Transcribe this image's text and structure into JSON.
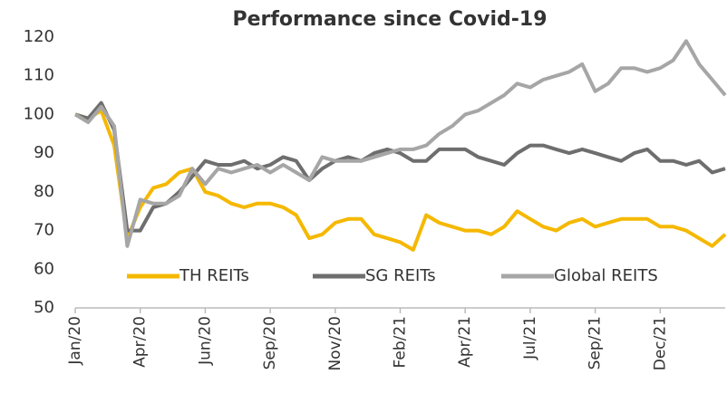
{
  "chart_data": {
    "type": "line",
    "title": "Performance since Covid-19",
    "categories": [
      "Jan/20",
      null,
      null,
      null,
      null,
      "Apr/20",
      null,
      null,
      null,
      null,
      "Jun/20",
      null,
      null,
      null,
      null,
      "Sep/20",
      null,
      null,
      null,
      null,
      "Nov/20",
      null,
      null,
      null,
      null,
      "Feb/21",
      null,
      null,
      null,
      null,
      "Apr/21",
      null,
      null,
      null,
      null,
      "Jul/21",
      null,
      null,
      null,
      null,
      "Sep/21",
      null,
      null,
      null,
      null,
      "Dec/21",
      null,
      null,
      null,
      null,
      null
    ],
    "series": [
      {
        "name": "TH REITs",
        "color": "#f5b800",
        "values": [
          100,
          99,
          101,
          92,
          68,
          76,
          81,
          82,
          85,
          86,
          80,
          79,
          77,
          76,
          77,
          77,
          76,
          74,
          68,
          69,
          72,
          73,
          73,
          69,
          68,
          67,
          65,
          74,
          72,
          71,
          70,
          70,
          69,
          71,
          75,
          73,
          71,
          70,
          72,
          73,
          71,
          72,
          73,
          73,
          73,
          71,
          71,
          70,
          68,
          66,
          69
        ]
      },
      {
        "name": "SG REITs",
        "color": "#6e6e6e",
        "values": [
          100,
          99,
          103,
          96,
          70,
          70,
          76,
          77,
          80,
          84,
          88,
          87,
          87,
          88,
          86,
          87,
          89,
          88,
          83,
          86,
          88,
          89,
          88,
          90,
          91,
          90,
          88,
          88,
          91,
          91,
          91,
          89,
          88,
          87,
          90,
          92,
          92,
          91,
          90,
          91,
          90,
          89,
          88,
          90,
          91,
          88,
          88,
          87,
          88,
          85,
          86
        ]
      },
      {
        "name": "Global REITS",
        "color": "#a6a6a6",
        "values": [
          100,
          98,
          102,
          97,
          66,
          78,
          77,
          77,
          79,
          86,
          82,
          86,
          85,
          86,
          87,
          85,
          87,
          85,
          83,
          89,
          88,
          88,
          88,
          89,
          90,
          91,
          91,
          92,
          95,
          97,
          100,
          101,
          103,
          105,
          108,
          107,
          109,
          110,
          111,
          113,
          106,
          108,
          112,
          112,
          111,
          112,
          114,
          119,
          113,
          109,
          105
        ]
      }
    ],
    "ylim": [
      50,
      120
    ],
    "yticks": [
      50,
      60,
      70,
      80,
      90,
      100,
      110,
      120
    ],
    "legend": "bottom",
    "grid": false
  }
}
